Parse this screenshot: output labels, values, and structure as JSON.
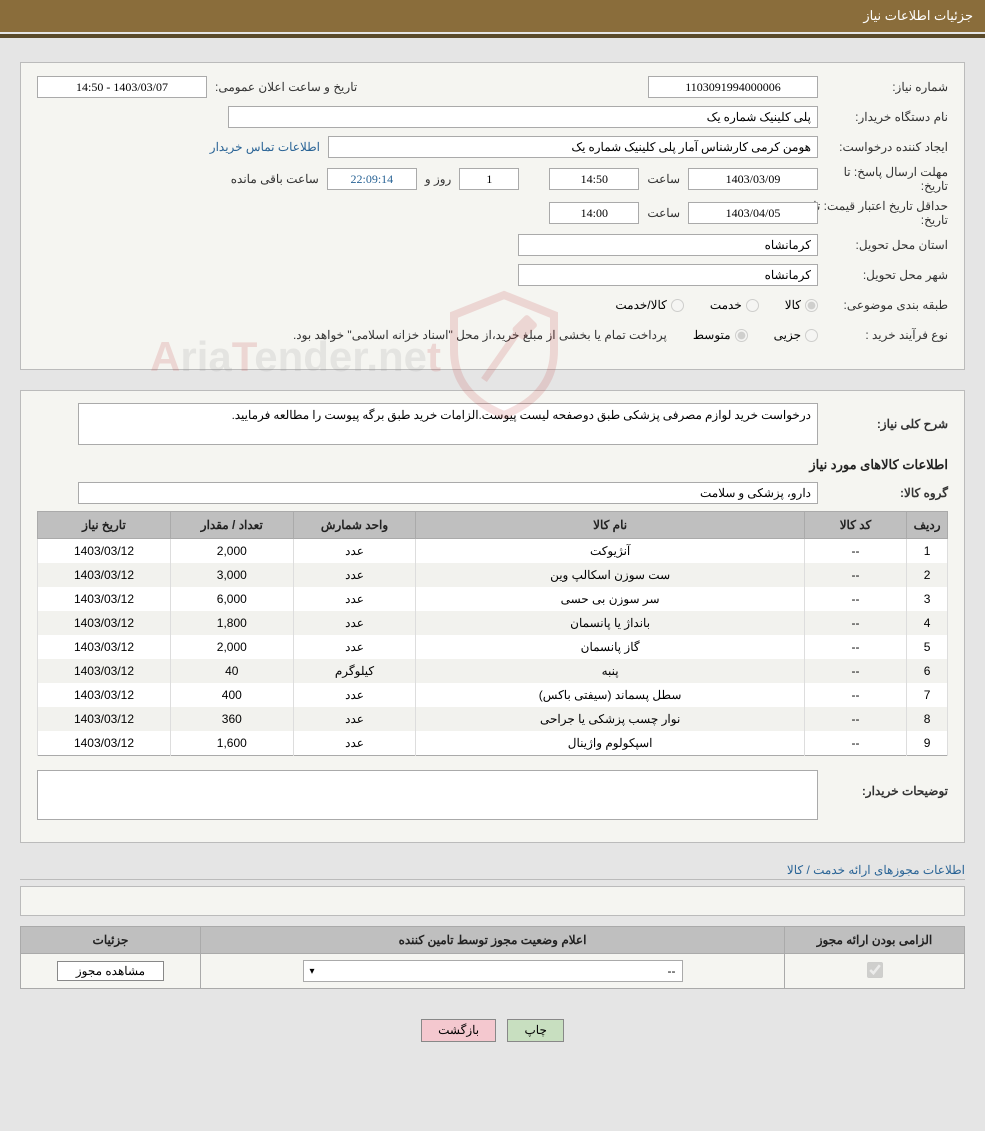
{
  "header": {
    "title": "جزئیات اطلاعات نیاز"
  },
  "form": {
    "need_number_label": "شماره نیاز:",
    "need_number": "1103091994000006",
    "announce_datetime_label": "تاریخ و ساعت اعلان عمومی:",
    "announce_datetime": "14:50 - 1403/03/07",
    "buyer_org_label": "نام دستگاه خریدار:",
    "buyer_org": "پلی کلینیک شماره یک",
    "requester_label": "ایجاد کننده درخواست:",
    "requester": "هومن کرمی کارشناس آمار پلی کلینیک شماره یک",
    "buyer_contact_link": "اطلاعات تماس خریدار",
    "deadline_label": "مهلت ارسال پاسخ:",
    "to_date_label": "تا تاریخ:",
    "deadline_date": "1403/03/09",
    "hour_label": "ساعت",
    "deadline_time": "14:50",
    "days_and_label": "روز و",
    "days_remaining": "1",
    "countdown": "22:09:14",
    "remaining_label": "ساعت باقی مانده",
    "validity_label": "حداقل تاریخ اعتبار قیمت:",
    "validity_date": "1403/04/05",
    "validity_time": "14:00",
    "delivery_province_label": "استان محل تحویل:",
    "delivery_province": "کرمانشاه",
    "delivery_city_label": "شهر محل تحویل:",
    "delivery_city": "کرمانشاه",
    "category_label": "طبقه بندی موضوعی:",
    "cat_goods": "کالا",
    "cat_service": "خدمت",
    "cat_goods_service": "کالا/خدمت",
    "purchase_type_label": "نوع فرآیند خرید :",
    "pt_small": "جزیی",
    "pt_medium": "متوسط",
    "payment_note": "پرداخت تمام یا بخشی از مبلغ خرید،از محل \"اسناد خزانه اسلامی\" خواهد بود."
  },
  "description": {
    "label": "شرح کلی نیاز:",
    "text": "درخواست خرید لوازم مصرفی پزشکی طبق دوصفحه لیست پیوست.الزامات خرید طبق برگه پیوست را مطالعه فرمایید."
  },
  "goods": {
    "section_title": "اطلاعات کالاهای مورد نیاز",
    "group_label": "گروه کالا:",
    "group": "دارو، پزشکی و سلامت",
    "columns": {
      "row": "ردیف",
      "code": "کد کالا",
      "name": "نام کالا",
      "unit": "واحد شمارش",
      "qty": "تعداد / مقدار",
      "date": "تاریخ نیاز"
    },
    "rows": [
      {
        "row": "1",
        "code": "--",
        "name": "آنژیوکت",
        "unit": "عدد",
        "qty": "2,000",
        "date": "1403/03/12"
      },
      {
        "row": "2",
        "code": "--",
        "name": "ست سوزن اسکالپ وین",
        "unit": "عدد",
        "qty": "3,000",
        "date": "1403/03/12"
      },
      {
        "row": "3",
        "code": "--",
        "name": "سر سوزن بی حسی",
        "unit": "عدد",
        "qty": "6,000",
        "date": "1403/03/12"
      },
      {
        "row": "4",
        "code": "--",
        "name": "بانداژ یا پانسمان",
        "unit": "عدد",
        "qty": "1,800",
        "date": "1403/03/12"
      },
      {
        "row": "5",
        "code": "--",
        "name": "گاز پانسمان",
        "unit": "عدد",
        "qty": "2,000",
        "date": "1403/03/12"
      },
      {
        "row": "6",
        "code": "--",
        "name": "پنبه",
        "unit": "کیلوگرم",
        "qty": "40",
        "date": "1403/03/12"
      },
      {
        "row": "7",
        "code": "--",
        "name": "سطل پسماند (سیفتی باکس)",
        "unit": "عدد",
        "qty": "400",
        "date": "1403/03/12"
      },
      {
        "row": "8",
        "code": "--",
        "name": "نوار چسب پزشکی یا جراحی",
        "unit": "عدد",
        "qty": "360",
        "date": "1403/03/12"
      },
      {
        "row": "9",
        "code": "--",
        "name": "اسپکولوم واژینال",
        "unit": "عدد",
        "qty": "1,600",
        "date": "1403/03/12"
      }
    ]
  },
  "buyer_notes": {
    "label": "توضیحات خریدار:",
    "text": ""
  },
  "license": {
    "section_title": "اطلاعات مجوزهای ارائه خدمت / کالا",
    "columns": {
      "required": "الزامی بودن ارائه مجوز",
      "status": "اعلام وضعیت مجوز توسط تامین کننده",
      "details": "جزئیات"
    },
    "select_value": "--",
    "view_button": "مشاهده مجوز"
  },
  "buttons": {
    "print": "چاپ",
    "back": "بازگشت"
  },
  "colors": {
    "header_bg": "#8a6d3b",
    "panel_bg": "#f5f5f1",
    "th_bg": "#bfbfbf",
    "link": "#2a6496"
  }
}
